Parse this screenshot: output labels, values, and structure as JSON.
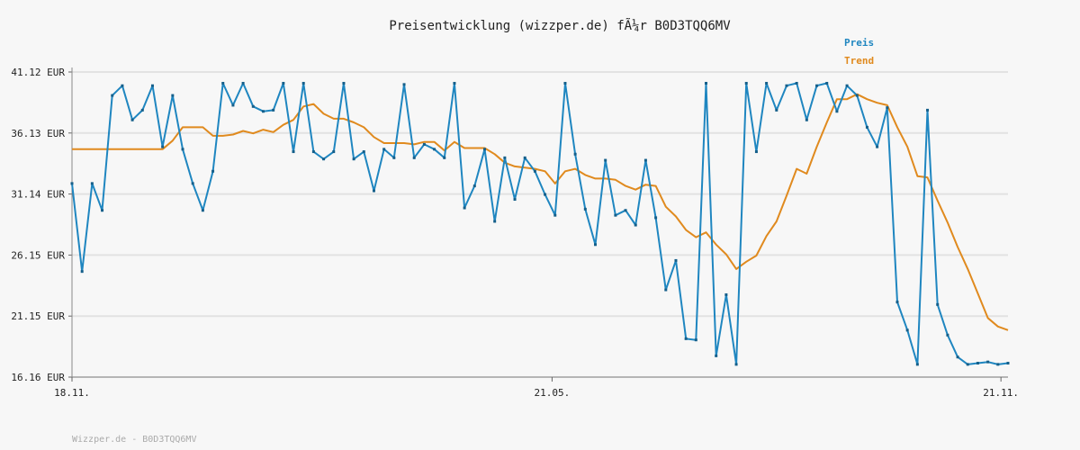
{
  "chart_data": {
    "type": "line",
    "title": "Preisentwicklung (wizzper.de) fÃ¼r B0D3TQQ6MV",
    "footer": "Wizzper.de - B0D3TQQ6MV",
    "ylim": [
      16.16,
      41.12
    ],
    "y_ticks": [
      "16.16 EUR",
      "21.15 EUR",
      "26.15 EUR",
      "31.14 EUR",
      "36.13 EUR",
      "41.12 EUR"
    ],
    "x_ticks": [
      "18.11.",
      "21.05.",
      "21.11."
    ],
    "x_tick_index": [
      0,
      47.7,
      92.3
    ],
    "legend_position": "top-right",
    "colors": {
      "Preis": "#1f86c0",
      "Trend": "#e08a1e"
    },
    "series": [
      {
        "name": "Preis",
        "values": [
          32.0,
          24.8,
          32.0,
          29.8,
          39.2,
          40.0,
          37.2,
          38.0,
          40.0,
          35.0,
          39.2,
          34.8,
          32.0,
          29.8,
          33.0,
          40.2,
          38.4,
          40.2,
          38.3,
          37.9,
          38.0,
          40.2,
          34.6,
          40.2,
          34.6,
          34.0,
          34.6,
          40.2,
          34.0,
          34.6,
          31.4,
          34.8,
          34.1,
          40.1,
          34.1,
          35.2,
          34.8,
          34.1,
          40.2,
          30.0,
          31.8,
          34.8,
          28.9,
          34.1,
          30.7,
          34.1,
          33.0,
          31.1,
          29.4,
          40.2,
          34.4,
          29.9,
          27.0,
          33.9,
          29.4,
          29.8,
          28.6,
          33.9,
          29.2,
          23.3,
          25.7,
          19.3,
          19.2,
          40.2,
          17.9,
          22.9,
          17.2,
          40.2,
          34.6,
          40.2,
          38.0,
          40.0,
          40.2,
          37.2,
          40.0,
          40.2,
          37.9,
          40.0,
          39.2,
          36.6,
          35.0,
          38.2,
          22.3,
          20.0,
          17.2,
          38.0,
          22.1,
          19.6,
          17.8,
          17.2,
          17.3,
          17.4,
          17.2,
          17.3
        ],
        "trend": [
          34.8,
          34.8,
          34.8,
          34.8,
          34.8,
          34.8,
          34.8,
          34.8,
          34.8,
          34.8,
          35.5,
          36.6,
          36.6,
          36.6,
          35.9,
          35.9,
          36.0,
          36.3,
          36.1,
          36.4,
          36.2,
          36.8,
          37.2,
          38.3,
          38.5,
          37.7,
          37.3,
          37.3,
          37.0,
          36.6,
          35.8,
          35.3,
          35.3,
          35.3,
          35.2,
          35.4,
          35.4,
          34.7,
          35.4,
          34.9,
          34.9,
          34.9,
          34.4,
          33.7,
          33.4,
          33.3,
          33.2,
          33.0,
          32.0,
          33.0,
          33.2,
          32.7,
          32.4,
          32.4,
          32.3,
          31.8,
          31.5,
          31.9,
          31.8,
          30.1,
          29.3,
          28.2,
          27.6,
          28.0,
          27.0,
          26.2,
          25.0,
          25.6,
          26.1,
          27.7,
          28.9,
          31.0,
          33.2,
          32.8,
          35.0,
          37.0,
          38.9,
          38.9,
          39.3,
          38.9,
          38.6,
          38.4,
          36.6,
          35.0,
          32.6,
          32.5,
          30.6,
          28.8,
          26.8,
          25.0,
          23.0,
          21.0,
          20.3,
          20.0
        ]
      }
    ]
  }
}
